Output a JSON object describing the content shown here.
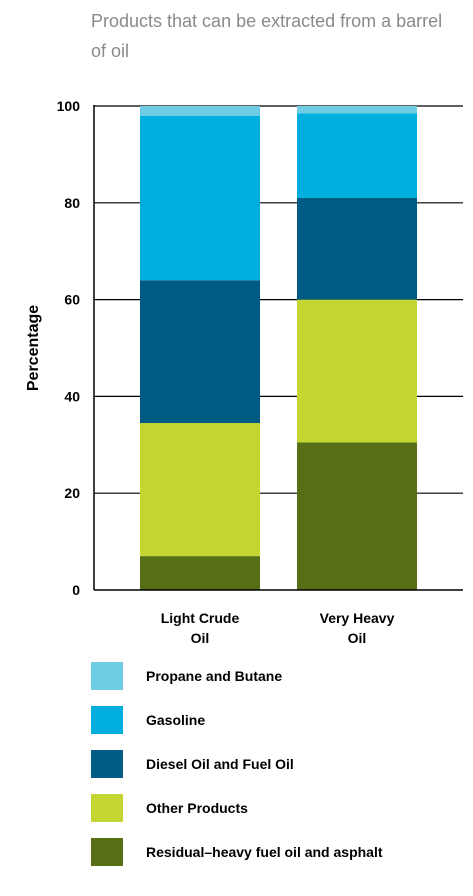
{
  "chart_data": {
    "type": "bar",
    "stacked": true,
    "title": "Products that can be extracted from a barrel of oil",
    "ylabel": "Percentage",
    "xlabel": "",
    "ylim": [
      0,
      100
    ],
    "yticks": [
      0,
      20,
      40,
      60,
      80,
      100
    ],
    "grid": true,
    "legend_position": "bottom",
    "categories": [
      [
        "Light Crude",
        "Oil"
      ],
      [
        "Very Heavy",
        "Oil"
      ]
    ],
    "series": [
      {
        "name": "Residual–heavy fuel oil and asphalt",
        "color": "#566f14",
        "values": [
          7,
          30.5
        ]
      },
      {
        "name": "Other Products",
        "color": "#c4d631",
        "values": [
          27.5,
          29.5
        ]
      },
      {
        "name": "Diesel Oil and Fuel Oil",
        "color": "#005b83",
        "values": [
          29.5,
          21
        ]
      },
      {
        "name": "Gasoline",
        "color": "#00afdd",
        "values": [
          34,
          17.5
        ]
      },
      {
        "name": "Propane and Butane",
        "color": "#6ecde3",
        "values": [
          2,
          1.5
        ]
      }
    ]
  }
}
